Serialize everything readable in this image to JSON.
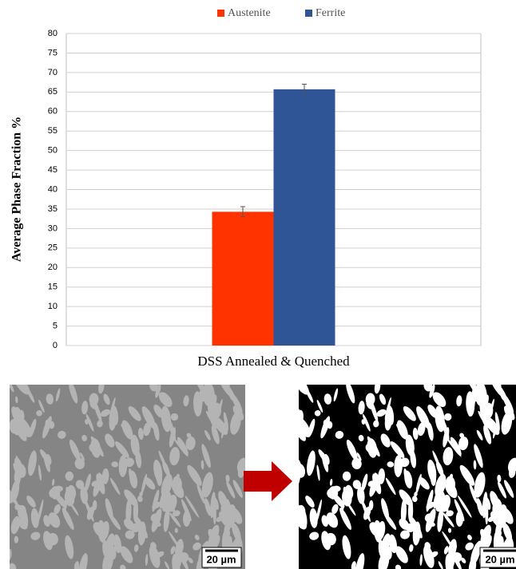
{
  "chart_data": {
    "type": "bar",
    "y_label": "Average Phase Fraction %",
    "categories": [
      "DSS Annealed & Quenched"
    ],
    "series": [
      {
        "name": "Austenite",
        "color": "#ff3300",
        "values": [
          34.3
        ],
        "errors": [
          1.3
        ]
      },
      {
        "name": "Ferrite",
        "color": "#2f5597",
        "values": [
          65.7
        ],
        "errors": [
          1.3
        ]
      }
    ],
    "ylim": [
      0,
      80
    ],
    "yticks": [
      0,
      5,
      10,
      15,
      20,
      25,
      30,
      35,
      40,
      45,
      50,
      55,
      60,
      65,
      70,
      75,
      80
    ],
    "grid": true,
    "legend": "top"
  },
  "micrographs": {
    "scale_labels": [
      "20 µm",
      "20 µm"
    ]
  }
}
